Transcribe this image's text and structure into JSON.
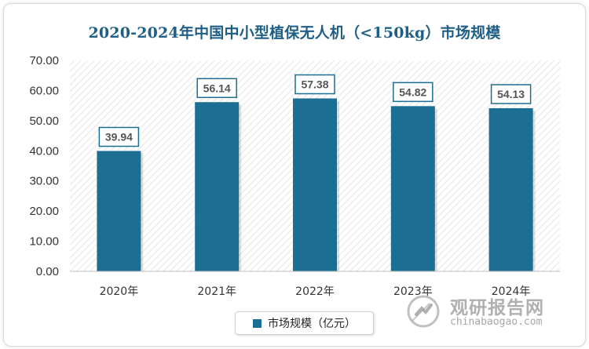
{
  "chart_data": {
    "type": "bar",
    "title": "2020-2024年中国中小型植保无人机（<150kg）市场规模",
    "categories": [
      "2020年",
      "2021年",
      "2022年",
      "2023年",
      "2024年"
    ],
    "series": [
      {
        "name": "市场规模（亿元）",
        "values": [
          39.94,
          56.14,
          57.38,
          54.82,
          54.13
        ]
      }
    ],
    "data_labels": [
      "39.94",
      "56.14",
      "57.38",
      "54.82",
      "54.13"
    ],
    "yticks": [
      "0.00",
      "10.00",
      "20.00",
      "30.00",
      "40.00",
      "50.00",
      "60.00",
      "70.00"
    ],
    "ylim": [
      0,
      70
    ],
    "xlabel": "",
    "ylabel": "",
    "grid": false,
    "legend_position": "bottom",
    "colors": {
      "bar": "#1d6e93",
      "title": "#1f5f86",
      "label_border": "#1d6e93"
    }
  },
  "watermark": {
    "cn": "观研报告网",
    "en": "chinabaogao.com",
    "logo_icon": "chinabaogao-logo-icon"
  }
}
